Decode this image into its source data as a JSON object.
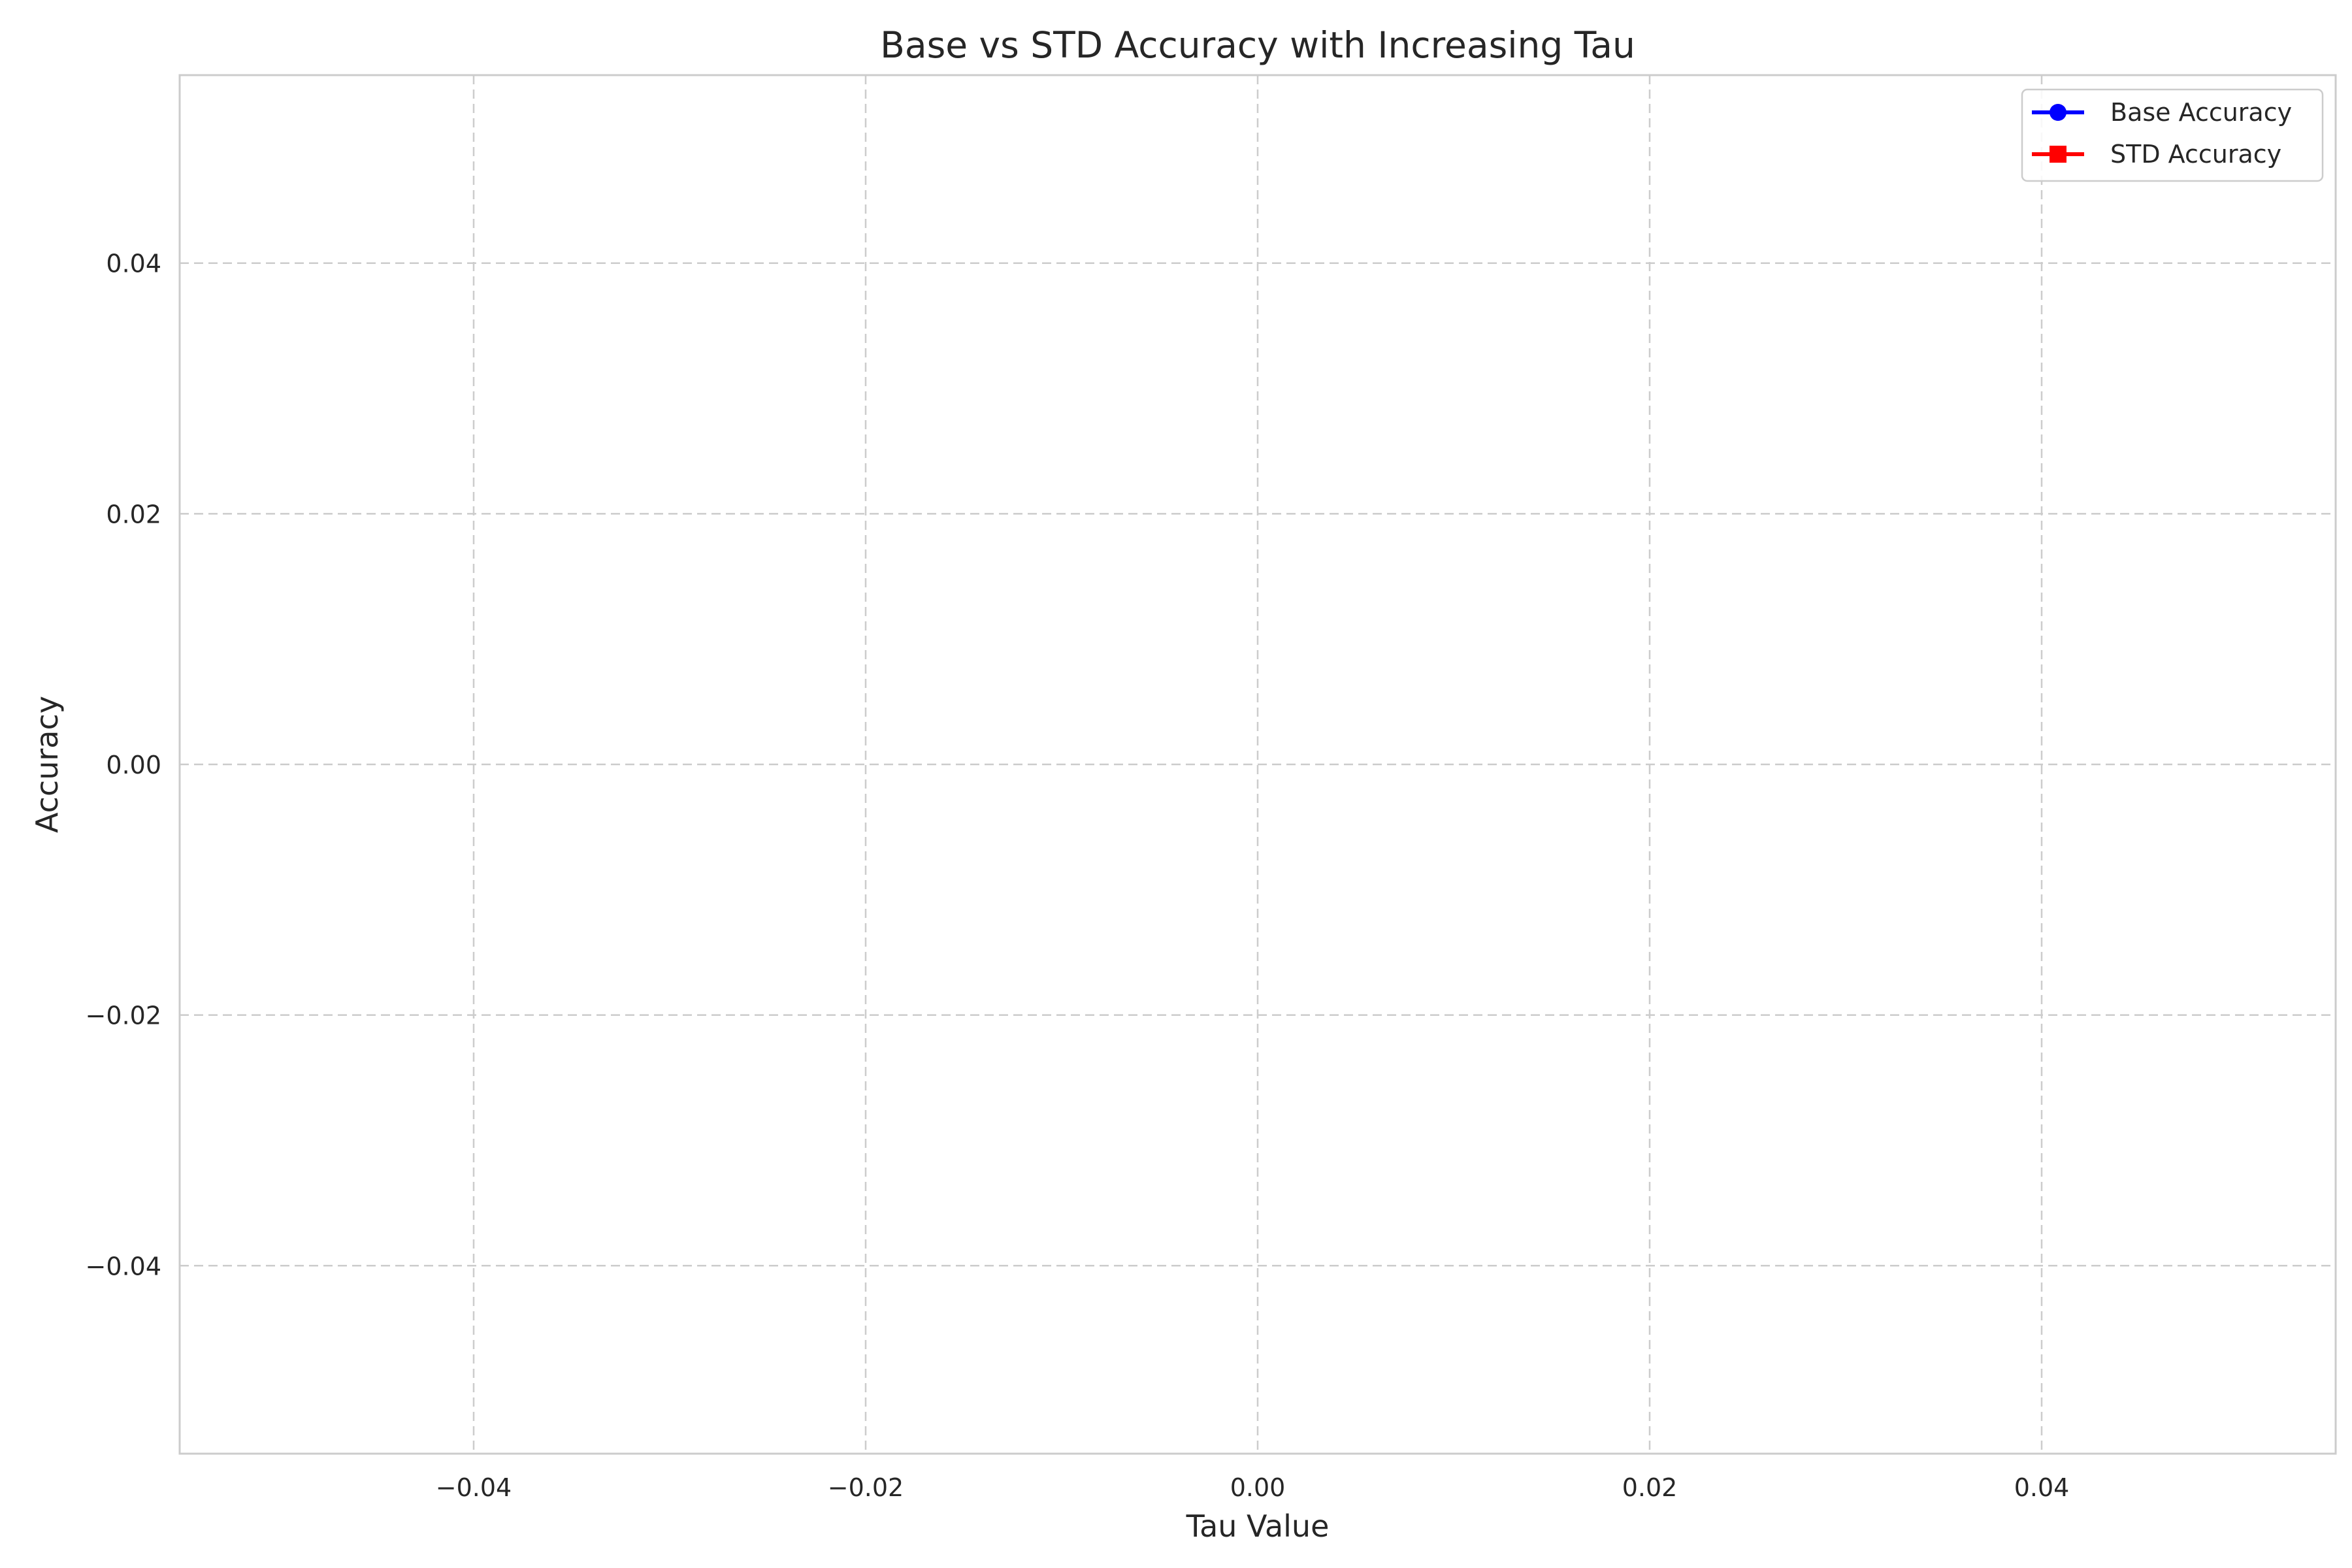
{
  "chart_data": {
    "type": "line",
    "title": "Base vs STD Accuracy with Increasing Tau",
    "xlabel": "Tau Value",
    "ylabel": "Accuracy",
    "xlim": [
      -0.055,
      0.055
    ],
    "ylim": [
      -0.055,
      0.055
    ],
    "xticks": [
      -0.04,
      -0.02,
      0.0,
      0.02,
      0.04
    ],
    "xtick_labels": [
      "−0.04",
      "−0.02",
      "0.00",
      "0.02",
      "0.04"
    ],
    "yticks": [
      -0.04,
      -0.02,
      0.0,
      0.02,
      0.04
    ],
    "ytick_labels": [
      "−0.04",
      "−0.02",
      "0.00",
      "0.02",
      "0.04"
    ],
    "grid": true,
    "legend_position": "top-right",
    "series": [
      {
        "name": "Base Accuracy",
        "color": "#0000ff",
        "marker": "circle",
        "x": [],
        "y": []
      },
      {
        "name": "STD Accuracy",
        "color": "#ff0000",
        "marker": "square",
        "x": [],
        "y": []
      }
    ]
  }
}
